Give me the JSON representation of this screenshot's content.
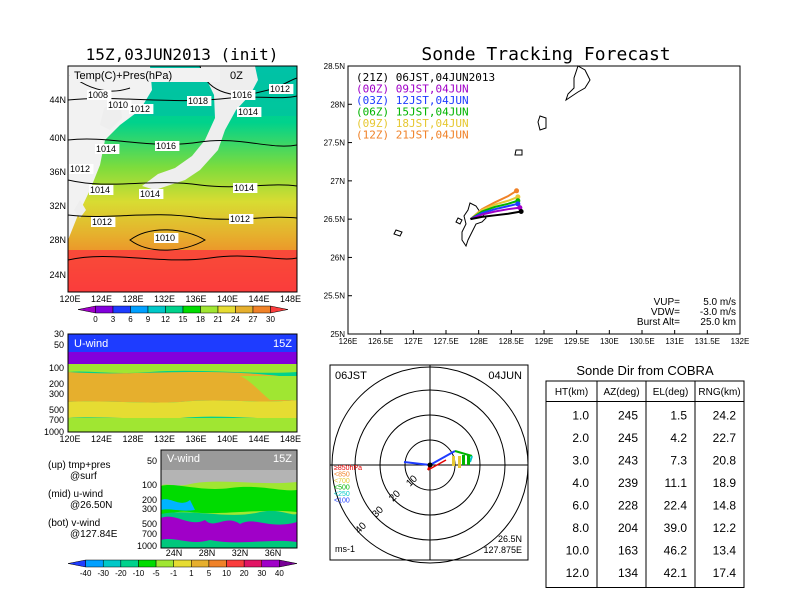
{
  "left_title": "15Z,03JUN2013 (init)",
  "right_title": "Sonde Tracking Forecast",
  "surface_map": {
    "label": "Temp(C)+Pres(hPa)",
    "suffix": "0Z",
    "lat_ticks": [
      "44N",
      "40N",
      "36N",
      "32N",
      "28N",
      "24N"
    ],
    "lon_ticks": [
      "120E",
      "124E",
      "128E",
      "132E",
      "136E",
      "140E",
      "144E",
      "148E"
    ],
    "isobar_labels": [
      {
        "t": "1008"
      },
      {
        "t": "1010"
      },
      {
        "t": "1012"
      },
      {
        "t": "1018"
      },
      {
        "t": "1016"
      },
      {
        "t": "1014"
      },
      {
        "t": "1012"
      },
      {
        "t": "1014"
      },
      {
        "t": "1016"
      },
      {
        "t": "1014"
      },
      {
        "t": "1014"
      },
      {
        "t": "1014"
      },
      {
        "t": "1012"
      },
      {
        "t": "1012"
      },
      {
        "t": "1010"
      },
      {
        "t": "1012"
      }
    ],
    "colorbar": {
      "ticks": [
        "0",
        "3",
        "6",
        "9",
        "12",
        "15",
        "18",
        "21",
        "24",
        "27",
        "30"
      ],
      "colors": [
        "#a000c8",
        "#8200dc",
        "#1e3cff",
        "#00a0ff",
        "#00c8c8",
        "#00d28c",
        "#00dc00",
        "#a0e632",
        "#e6dc32",
        "#e6af2d",
        "#f08228",
        "#fa3c3c"
      ]
    }
  },
  "u_panel": {
    "label": "U-wind",
    "time": "15Z",
    "p_ticks": [
      "30",
      "50",
      "100",
      "200",
      "300",
      "500",
      "700",
      "1000"
    ],
    "lon_ticks": [
      "120E",
      "124E",
      "128E",
      "132E",
      "136E",
      "140E",
      "144E",
      "148E"
    ]
  },
  "v_panel": {
    "label": "V-wind",
    "time": "15Z",
    "p_ticks": [
      "50",
      "100",
      "200",
      "300",
      "500",
      "700",
      "1000"
    ],
    "lat_ticks": [
      "24N",
      "28N",
      "32N",
      "36N"
    ],
    "colorbar": {
      "ticks": [
        "-40",
        "-30",
        "-20",
        "-10",
        "-5",
        "-1",
        "1",
        "5",
        "10",
        "20",
        "30",
        "40"
      ],
      "colors": [
        "#1e3cff",
        "#00a0ff",
        "#00c8c8",
        "#00d28c",
        "#00dc00",
        "#a0e632",
        "#e6dc32",
        "#e6af2d",
        "#f08228",
        "#fa3c3c",
        "#e11464",
        "#a000c8",
        "#780096"
      ]
    }
  },
  "legend_notes": [
    {
      "a": "(up) tmp+pres",
      "b": "@surf"
    },
    {
      "a": "(mid) u-wind",
      "b": "@26.50N"
    },
    {
      "a": "(bot) v-wind",
      "b": "@127.84E"
    }
  ],
  "chart_data": {
    "type": "scatter",
    "title": "Sonde Tracking Forecast",
    "xlim": [
      126,
      132
    ],
    "ylim": [
      25,
      28.5
    ],
    "x_ticks": [
      "126E",
      "126.5E",
      "127E",
      "127.5E",
      "128E",
      "128.5E",
      "129E",
      "129.5E",
      "130E",
      "130.5E",
      "131E",
      "131.5E",
      "132E"
    ],
    "y_ticks": [
      "25N",
      "25.5N",
      "26N",
      "26.5N",
      "27N",
      "27.5N",
      "28N",
      "28.5N"
    ],
    "launch": {
      "lon": 127.875,
      "lat": 26.5
    },
    "series": [
      {
        "name": "(21Z) 06JST,04JUN2013",
        "color": "#000000",
        "lon": [
          127.875,
          128.05,
          128.25,
          128.45,
          128.65
        ],
        "lat": [
          26.5,
          26.53,
          26.55,
          26.57,
          26.6
        ]
      },
      {
        "name": "(00Z) 09JST,04JUN",
        "color": "#a000c8",
        "lon": [
          127.875,
          128.05,
          128.25,
          128.45,
          128.63
        ],
        "lat": [
          26.5,
          26.56,
          26.6,
          26.63,
          26.65
        ]
      },
      {
        "name": "(03Z) 12JST,04JUN",
        "color": "#1e3cff",
        "lon": [
          127.875,
          128.05,
          128.25,
          128.45,
          128.6
        ],
        "lat": [
          26.5,
          26.58,
          26.63,
          26.67,
          26.7
        ]
      },
      {
        "name": "(06Z) 15JST,04JUN",
        "color": "#00b400",
        "lon": [
          127.875,
          128.05,
          128.25,
          128.45,
          128.6
        ],
        "lat": [
          26.5,
          26.6,
          26.66,
          26.7,
          26.74
        ]
      },
      {
        "name": "(09Z) 18JST,04JUN",
        "color": "#e6c832",
        "lon": [
          127.875,
          128.05,
          128.25,
          128.45,
          128.6
        ],
        "lat": [
          26.5,
          26.62,
          26.69,
          26.74,
          26.79
        ]
      },
      {
        "name": "(12Z) 21JST,04JUN",
        "color": "#f08228",
        "lon": [
          127.875,
          128.05,
          128.25,
          128.45,
          128.58
        ],
        "lat": [
          26.5,
          26.63,
          26.72,
          26.8,
          26.87
        ]
      }
    ],
    "params": [
      {
        "label": "VUP=",
        "value": "5.0 m/s"
      },
      {
        "label": "VDW=",
        "value": "-3.0 m/s"
      },
      {
        "label": "Burst Alt=",
        "value": "25.0 km"
      }
    ]
  },
  "polar": {
    "time_left": "06JST",
    "date_right": "04JUN",
    "ring_labels": [
      "10",
      "20",
      "30",
      "40"
    ],
    "legend": [
      {
        "t": "≥850hPa",
        "c": "#e60000"
      },
      {
        "t": "<850",
        "c": "#f08228"
      },
      {
        "t": "<700",
        "c": "#e6c832"
      },
      {
        "t": "<500",
        "c": "#00b400"
      },
      {
        "t": "<250",
        "c": "#00c8c8"
      },
      {
        "t": "<100",
        "c": "#1e3cff"
      }
    ],
    "unit": "ms-1",
    "loc_lat": "26.5N",
    "loc_lon": "127.875E"
  },
  "table": {
    "title": "Sonde Dir from COBRA",
    "headers": [
      "HT(km)",
      "AZ(deg)",
      "EL(deg)",
      "RNG(km)"
    ],
    "rows": [
      [
        "1.0",
        "245",
        "1.5",
        "24.2"
      ],
      [
        "2.0",
        "245",
        "4.2",
        "22.7"
      ],
      [
        "3.0",
        "243",
        "7.3",
        "20.8"
      ],
      [
        "4.0",
        "239",
        "11.1",
        "18.9"
      ],
      [
        "6.0",
        "228",
        "22.4",
        "14.8"
      ],
      [
        "8.0",
        "204",
        "39.0",
        "12.2"
      ],
      [
        "10.0",
        "163",
        "46.2",
        "13.4"
      ],
      [
        "12.0",
        "134",
        "42.1",
        "17.4"
      ]
    ]
  }
}
